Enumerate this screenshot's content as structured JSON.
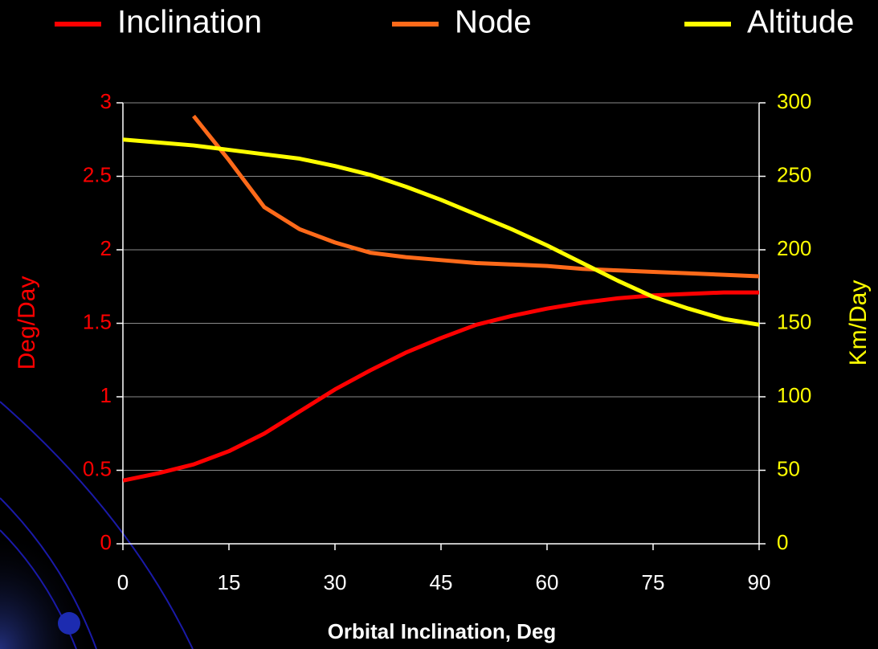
{
  "chart_data": {
    "type": "line",
    "x_label": "Orbital Inclination, Deg",
    "y_label": "Deg/Day",
    "y2_label": "Km/Day",
    "x": [
      0,
      5,
      10,
      15,
      20,
      25,
      30,
      35,
      40,
      45,
      50,
      55,
      60,
      65,
      70,
      75,
      80,
      85,
      90
    ],
    "xlim": [
      0,
      90
    ],
    "xticks": [
      0,
      15,
      30,
      45,
      60,
      75,
      90
    ],
    "ylim": [
      0,
      3
    ],
    "yticks": [
      0,
      0.5,
      1,
      1.5,
      2,
      2.5,
      3
    ],
    "y2lim": [
      0,
      300
    ],
    "y2ticks": [
      0,
      50,
      100,
      150,
      200,
      250,
      300
    ],
    "grid": true,
    "legend": "top",
    "series": [
      {
        "name": "Inclination",
        "color": "#ff0000",
        "axis": "y",
        "values": [
          0.43,
          0.48,
          0.54,
          0.63,
          0.75,
          0.9,
          1.05,
          1.18,
          1.3,
          1.4,
          1.49,
          1.55,
          1.6,
          1.64,
          1.67,
          1.69,
          1.7,
          1.71,
          1.71
        ]
      },
      {
        "name": "Node",
        "color": "#ff6a1a",
        "axis": "y",
        "values": [
          null,
          null,
          2.91,
          2.61,
          2.29,
          2.14,
          2.05,
          1.98,
          1.95,
          1.93,
          1.91,
          1.9,
          1.89,
          1.87,
          1.86,
          1.85,
          1.84,
          1.83,
          1.82
        ]
      },
      {
        "name": "Altitude",
        "color": "#ffff00",
        "axis": "y2",
        "values": [
          275,
          273,
          271,
          268,
          265,
          262,
          257,
          251,
          243,
          234,
          224,
          214,
          203,
          191,
          179,
          168,
          160,
          153,
          149
        ]
      }
    ]
  }
}
